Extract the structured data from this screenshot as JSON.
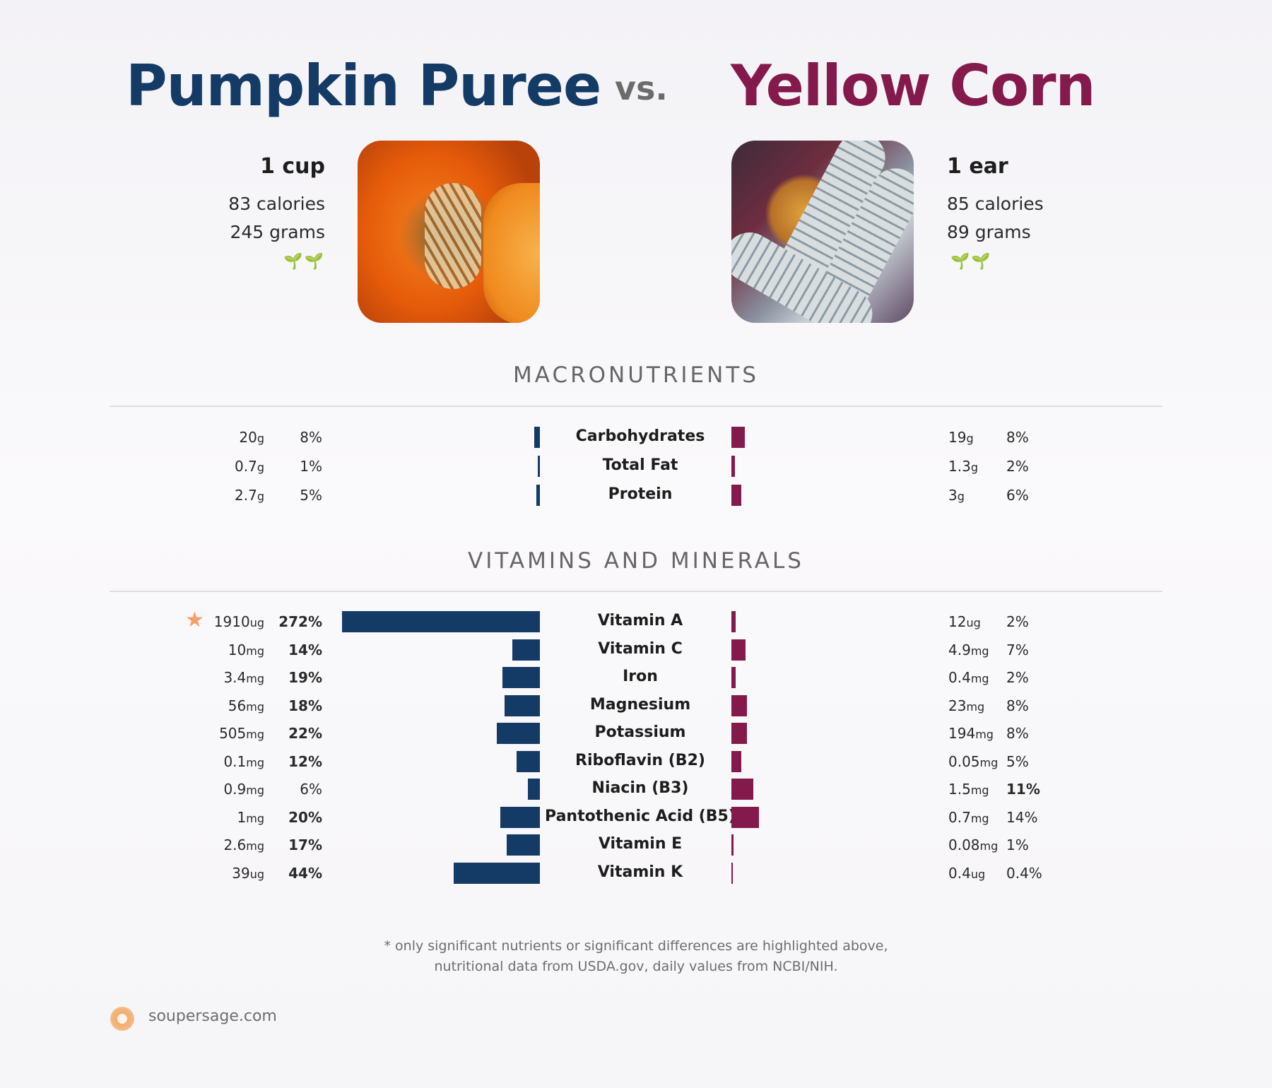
{
  "left": {
    "name": "Pumpkin Puree",
    "serving": "1 cup",
    "calories": "83 calories",
    "grams": "245 grams",
    "color": "#143a66",
    "badge": "sprout-icon"
  },
  "vs": "vs.",
  "right": {
    "name": "Yellow Corn",
    "serving": "1 ear",
    "calories": "85 calories",
    "grams": "89 grams",
    "color": "#841a4c",
    "badge": "sprout-icon"
  },
  "sections": {
    "macros": "MACRONUTRIENTS",
    "vitamins": "VITAMINS AND MINERALS"
  },
  "footnote": {
    "line1": "* only significant nutrients or significant differences are highlighted above,",
    "line2": "nutritional data from USDA.gov, daily values from NCBI/NIH."
  },
  "brand": "soupersage.com",
  "chart_data": [
    {
      "type": "bar",
      "orientation": "horizontal-butterfly",
      "title": "MACRONUTRIENTS",
      "series_names": [
        "Pumpkin Puree",
        "Yellow Corn"
      ],
      "rows": [
        {
          "name": "Carbohydrates",
          "left_value": "20",
          "left_unit": "g",
          "left_pct": 8,
          "left_pct_text": "8%",
          "left_bold": false,
          "right_value": "19",
          "right_unit": "g",
          "right_pct": 8,
          "right_pct_text": "8%",
          "right_bold": false
        },
        {
          "name": "Total Fat",
          "left_value": "0.7",
          "left_unit": "g",
          "left_pct": 1,
          "left_pct_text": "1%",
          "left_bold": false,
          "right_value": "1.3",
          "right_unit": "g",
          "right_pct": 2,
          "right_pct_text": "2%",
          "right_bold": false
        },
        {
          "name": "Protein",
          "left_value": "2.7",
          "left_unit": "g",
          "left_pct": 5,
          "left_pct_text": "5%",
          "left_bold": false,
          "right_value": "3",
          "right_unit": "g",
          "right_pct": 6,
          "right_pct_text": "6%",
          "right_bold": false
        }
      ]
    },
    {
      "type": "bar",
      "orientation": "horizontal-butterfly",
      "title": "VITAMINS AND MINERALS",
      "series_names": [
        "Pumpkin Puree",
        "Yellow Corn"
      ],
      "rows": [
        {
          "name": "Vitamin A",
          "star": true,
          "left_value": "1910",
          "left_unit": "ug",
          "left_pct": 272,
          "left_pct_text": "272%",
          "left_bold": true,
          "right_value": "12",
          "right_unit": "ug",
          "right_pct": 2,
          "right_pct_text": "2%",
          "right_bold": false
        },
        {
          "name": "Vitamin C",
          "left_value": "10",
          "left_unit": "mg",
          "left_pct": 14,
          "left_pct_text": "14%",
          "left_bold": true,
          "right_value": "4.9",
          "right_unit": "mg",
          "right_pct": 7,
          "right_pct_text": "7%",
          "right_bold": false
        },
        {
          "name": "Iron",
          "left_value": "3.4",
          "left_unit": "mg",
          "left_pct": 19,
          "left_pct_text": "19%",
          "left_bold": true,
          "right_value": "0.4",
          "right_unit": "mg",
          "right_pct": 2,
          "right_pct_text": "2%",
          "right_bold": false
        },
        {
          "name": "Magnesium",
          "left_value": "56",
          "left_unit": "mg",
          "left_pct": 18,
          "left_pct_text": "18%",
          "left_bold": true,
          "right_value": "23",
          "right_unit": "mg",
          "right_pct": 8,
          "right_pct_text": "8%",
          "right_bold": false
        },
        {
          "name": "Potassium",
          "left_value": "505",
          "left_unit": "mg",
          "left_pct": 22,
          "left_pct_text": "22%",
          "left_bold": true,
          "right_value": "194",
          "right_unit": "mg",
          "right_pct": 8,
          "right_pct_text": "8%",
          "right_bold": false
        },
        {
          "name": "Riboflavin (B2)",
          "left_value": "0.1",
          "left_unit": "mg",
          "left_pct": 12,
          "left_pct_text": "12%",
          "left_bold": true,
          "right_value": "0.05",
          "right_unit": "mg",
          "right_pct": 5,
          "right_pct_text": "5%",
          "right_bold": false
        },
        {
          "name": "Niacin (B3)",
          "left_value": "0.9",
          "left_unit": "mg",
          "left_pct": 6,
          "left_pct_text": "6%",
          "left_bold": false,
          "right_value": "1.5",
          "right_unit": "mg",
          "right_pct": 11,
          "right_pct_text": "11%",
          "right_bold": true
        },
        {
          "name": "Pantothenic Acid (B5)",
          "left_value": "1",
          "left_unit": "mg",
          "left_pct": 20,
          "left_pct_text": "20%",
          "left_bold": true,
          "right_value": "0.7",
          "right_unit": "mg",
          "right_pct": 14,
          "right_pct_text": "14%",
          "right_bold": false
        },
        {
          "name": "Vitamin E",
          "left_value": "2.6",
          "left_unit": "mg",
          "left_pct": 17,
          "left_pct_text": "17%",
          "left_bold": true,
          "right_value": "0.08",
          "right_unit": "mg",
          "right_pct": 1,
          "right_pct_text": "1%",
          "right_bold": false
        },
        {
          "name": "Vitamin K",
          "left_value": "39",
          "left_unit": "ug",
          "left_pct": 44,
          "left_pct_text": "44%",
          "left_bold": true,
          "right_value": "0.4",
          "right_unit": "ug",
          "right_pct": 0.4,
          "right_pct_text": "0.4%",
          "right_bold": false
        }
      ]
    }
  ]
}
